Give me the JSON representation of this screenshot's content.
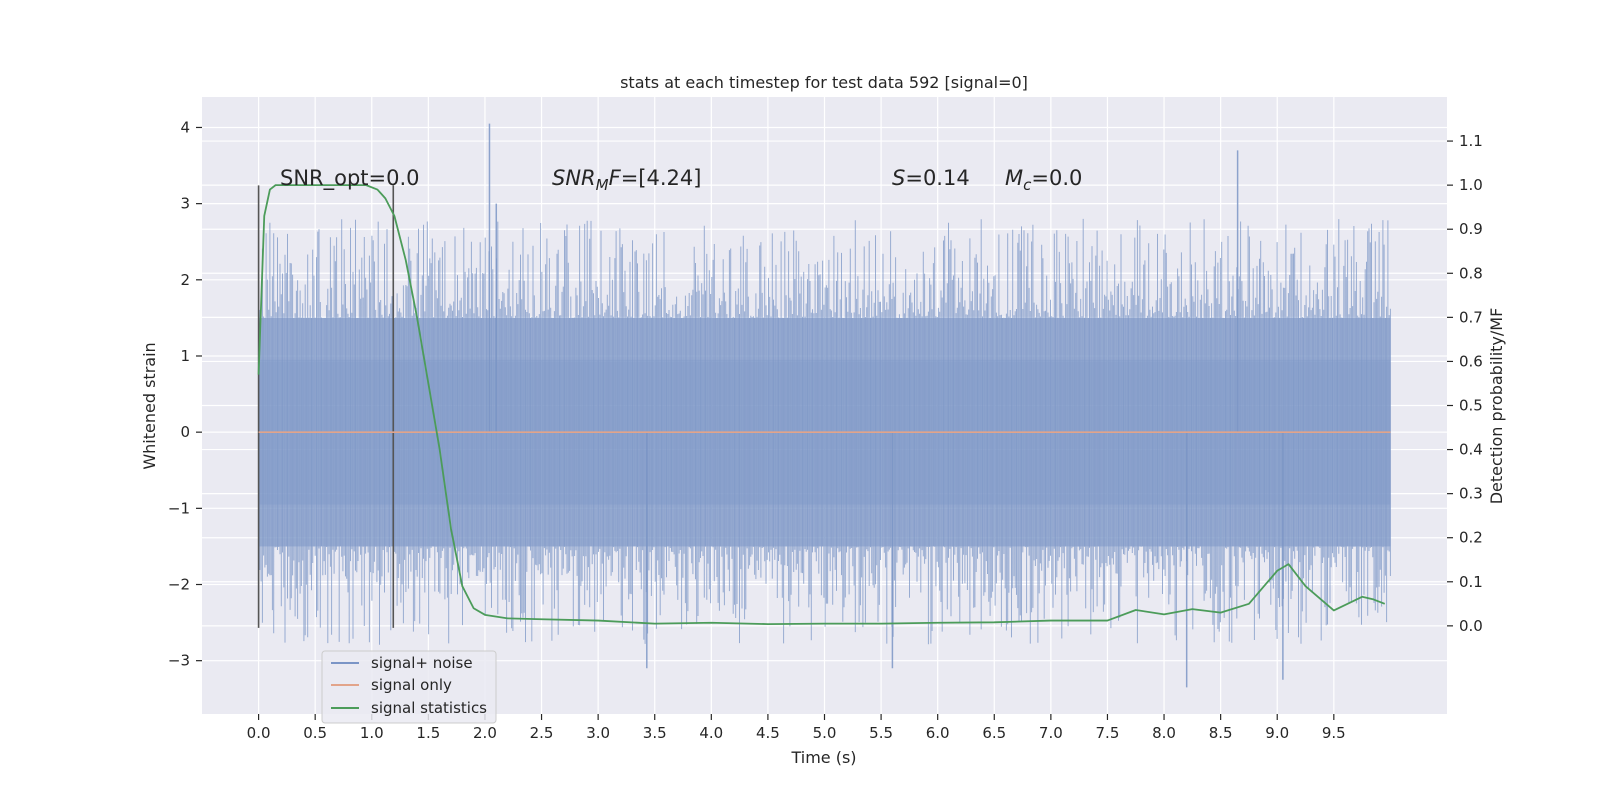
{
  "chart_data": {
    "type": "line",
    "title": "stats at each timestep for test data 592 [signal=0]",
    "xlabel": "Time (s)",
    "ylabel": "Whitened strain",
    "y2label": "Detection probability/MF",
    "xlim": [
      -0.5,
      10.5
    ],
    "ylim": [
      -3.7,
      4.4
    ],
    "y2lim": [
      -0.2,
      1.2
    ],
    "x_ticks": [
      0.0,
      0.5,
      1.0,
      1.5,
      2.0,
      2.5,
      3.0,
      3.5,
      4.0,
      4.5,
      5.0,
      5.5,
      6.0,
      6.5,
      7.0,
      7.5,
      8.0,
      8.5,
      9.0,
      9.5
    ],
    "x_tick_labels": [
      "0.0",
      "0.5",
      "1.0",
      "1.5",
      "2.0",
      "2.5",
      "3.0",
      "3.5",
      "4.0",
      "4.5",
      "5.0",
      "5.5",
      "6.0",
      "6.5",
      "7.0",
      "7.5",
      "8.0",
      "8.5",
      "9.0",
      "9.5"
    ],
    "y_ticks": [
      -3,
      -2,
      -1,
      0,
      1,
      2,
      3,
      4
    ],
    "y_tick_labels": [
      "−3",
      "−2",
      "−1",
      "0",
      "1",
      "2",
      "3",
      "4"
    ],
    "y2_ticks": [
      0.0,
      0.1,
      0.2,
      0.3,
      0.4,
      0.5,
      0.6,
      0.7,
      0.8,
      0.9,
      1.0,
      1.1
    ],
    "y2_tick_labels": [
      "0.0",
      "0.1",
      "0.2",
      "0.3",
      "0.4",
      "0.5",
      "0.6",
      "0.7",
      "0.8",
      "0.9",
      "1.0",
      "1.1"
    ],
    "grid": true,
    "legend_position": "lower-left",
    "series": [
      {
        "name": "signal+ noise",
        "color": "#7b95c6",
        "axis": "left",
        "x_range": [
          0.0,
          10.0
        ],
        "envelope": {
          "core": [
            -0.95,
            0.95
          ],
          "band": [
            -1.5,
            1.5
          ],
          "spikes": [
            -3.35,
            4.05
          ]
        }
      },
      {
        "name": "signal only",
        "color": "#e2a48a",
        "axis": "left",
        "x": [
          0.0,
          10.0
        ],
        "y": [
          0.0,
          0.0
        ]
      },
      {
        "name": "signal statistics",
        "color": "#4c9c5a",
        "axis": "right",
        "x": [
          0.0,
          0.05,
          0.1,
          0.15,
          0.25,
          0.4,
          0.6,
          0.8,
          0.95,
          1.05,
          1.12,
          1.2,
          1.3,
          1.4,
          1.5,
          1.6,
          1.7,
          1.8,
          1.9,
          2.0,
          2.2,
          2.5,
          3.0,
          3.5,
          4.0,
          4.5,
          5.0,
          5.5,
          6.0,
          6.5,
          7.0,
          7.5,
          7.75,
          8.0,
          8.25,
          8.5,
          8.75,
          9.0,
          9.1,
          9.25,
          9.5,
          9.75,
          9.85,
          9.95
        ],
        "y": [
          0.57,
          0.93,
          0.99,
          1.0,
          1.0,
          1.0,
          1.0,
          1.0,
          1.0,
          0.99,
          0.97,
          0.93,
          0.83,
          0.7,
          0.55,
          0.4,
          0.22,
          0.09,
          0.04,
          0.025,
          0.017,
          0.015,
          0.012,
          0.005,
          0.007,
          0.004,
          0.005,
          0.005,
          0.007,
          0.008,
          0.012,
          0.012,
          0.036,
          0.026,
          0.038,
          0.03,
          0.05,
          0.125,
          0.14,
          0.09,
          0.035,
          0.066,
          0.06,
          0.05
        ]
      }
    ],
    "vlines": [
      {
        "x": 0.0,
        "y": [
          -2.57,
          3.24
        ]
      },
      {
        "x": 1.19,
        "y": [
          -2.57,
          3.24
        ]
      }
    ],
    "annotations": [
      {
        "text": "SNR_opt=0.0",
        "x": 0.2,
        "y": 3.25
      },
      {
        "text": "SNR_MF=[4.24]",
        "x": 2.6,
        "y": 3.25
      },
      {
        "text": "S=0.14",
        "x": 5.6,
        "y": 3.25
      },
      {
        "text": "M_c=0.0",
        "x": 6.6,
        "y": 3.25
      }
    ]
  },
  "annotation_text": {
    "snr_opt": "SNR_opt=0.0",
    "snr_mf_sym": "SNR",
    "snr_mf_sub": "M",
    "snr_mf_rest": "F",
    "snr_mf_val": "=[4.24]",
    "s_sym": "S",
    "s_val": "=0.14",
    "mc_sym": "M",
    "mc_sub": "c",
    "mc_val": "=0.0"
  }
}
